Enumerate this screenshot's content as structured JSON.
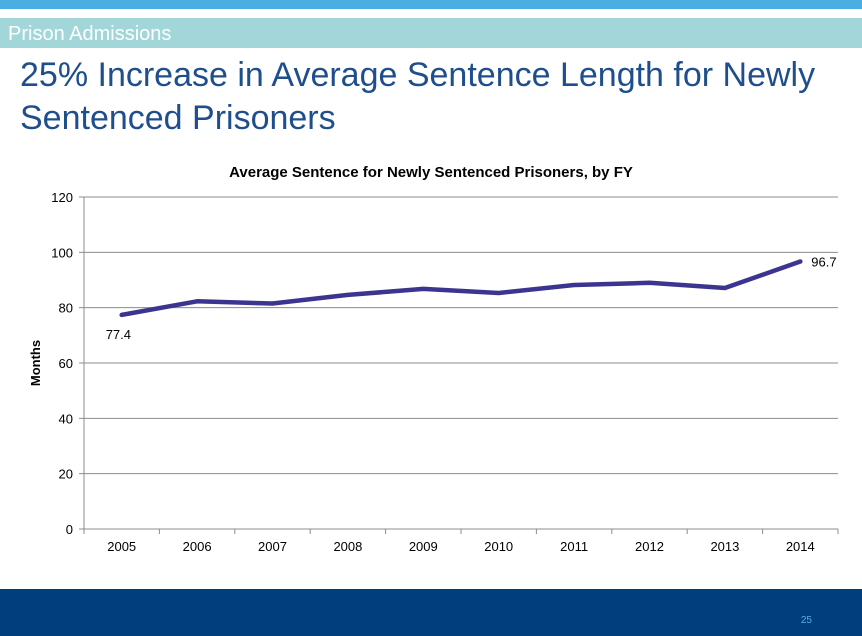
{
  "header": {
    "section": "Prison Admissions",
    "title": "25% Increase in Average Sentence Length for Newly Sentenced Prisoners"
  },
  "colors": {
    "accent_bar": "#4baee3",
    "section_band": "#a2d6d8",
    "title": "#1f4e8c",
    "series_line": "#3b3590",
    "footer": "#003e7e"
  },
  "chart_data": {
    "type": "line",
    "title": "Average Sentence for Newly Sentenced Prisoners, by FY",
    "xlabel": "",
    "ylabel": "Months",
    "ylim": [
      0,
      120
    ],
    "yticks": [
      "0",
      "20",
      "40",
      "60",
      "80",
      "100",
      "120"
    ],
    "grid": true,
    "categories": [
      "2005",
      "2006",
      "2007",
      "2008",
      "2009",
      "2010",
      "2011",
      "2012",
      "2013",
      "2014"
    ],
    "series": [
      {
        "name": "Average Sentence",
        "values": [
          77.4,
          82.3,
          81.5,
          84.6,
          86.8,
          85.3,
          88.2,
          89.0,
          87.1,
          96.7
        ]
      }
    ],
    "data_labels": [
      {
        "index": 0,
        "text": "77.4"
      },
      {
        "index": 9,
        "text": "96.7"
      }
    ]
  },
  "footer": {
    "page_number": "25"
  }
}
